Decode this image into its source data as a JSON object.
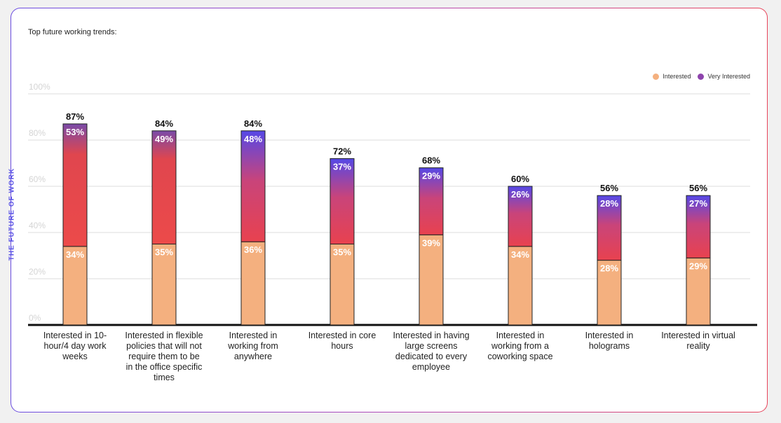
{
  "title": "Top future working trends:",
  "side_label": "THE FUTURE OF WORK",
  "legend": [
    {
      "name": "Interested",
      "color": "#f4b07f"
    },
    {
      "name": "Very Interested",
      "color": "#8e44ad"
    }
  ],
  "chart_data": {
    "type": "bar",
    "stacked": true,
    "categories": [
      "Interested in 10-hour/4 day work weeks",
      "Interested in flexible policies that will not require them to be in the office specific times",
      "Interested in working from anywhere",
      "Interested in core hours",
      "Interested in having large screens dedicated to every employee",
      "Interested in working from a coworking space",
      "Interested in holograms",
      "Interested in virtual reality"
    ],
    "series": [
      {
        "name": "Interested",
        "values": [
          34,
          35,
          36,
          35,
          39,
          34,
          28,
          29
        ]
      },
      {
        "name": "Very Interested",
        "values": [
          53,
          49,
          48,
          37,
          29,
          26,
          28,
          27
        ]
      }
    ],
    "totals": [
      87,
      84,
      84,
      72,
      68,
      60,
      56,
      56
    ],
    "segment_labels": {
      "Interested": [
        "34%",
        "35%",
        "36%",
        "35%",
        "39%",
        "34%",
        "28%",
        "29%"
      ],
      "Very Interested": [
        "53%",
        "49%",
        "48%",
        "37%",
        "29%",
        "26%",
        "28%",
        "27%"
      ]
    },
    "total_labels": [
      "87%",
      "84%",
      "84%",
      "72%",
      "68%",
      "60%",
      "56%",
      "56%"
    ],
    "y_ticks": [
      "0%",
      "20%",
      "40%",
      "60%",
      "80%",
      "100%"
    ],
    "ylim": [
      0,
      100
    ],
    "grid": true,
    "legend_position": "top-right"
  },
  "category_lines": [
    [
      "Interested in 10-",
      "hour/4 day work",
      "weeks"
    ],
    [
      "Interested in flexible",
      "policies that will not",
      "require them to be",
      "in the office specific",
      "times"
    ],
    [
      "Interested in",
      "working from",
      "anywhere"
    ],
    [
      "Interested in core",
      "hours"
    ],
    [
      "Interested in having",
      "large screens",
      "dedicated to every",
      "employee"
    ],
    [
      "Interested in",
      "working from a",
      "coworking space"
    ],
    [
      "Interested in",
      "holograms"
    ],
    [
      "Interested in virtual",
      "reality"
    ]
  ]
}
